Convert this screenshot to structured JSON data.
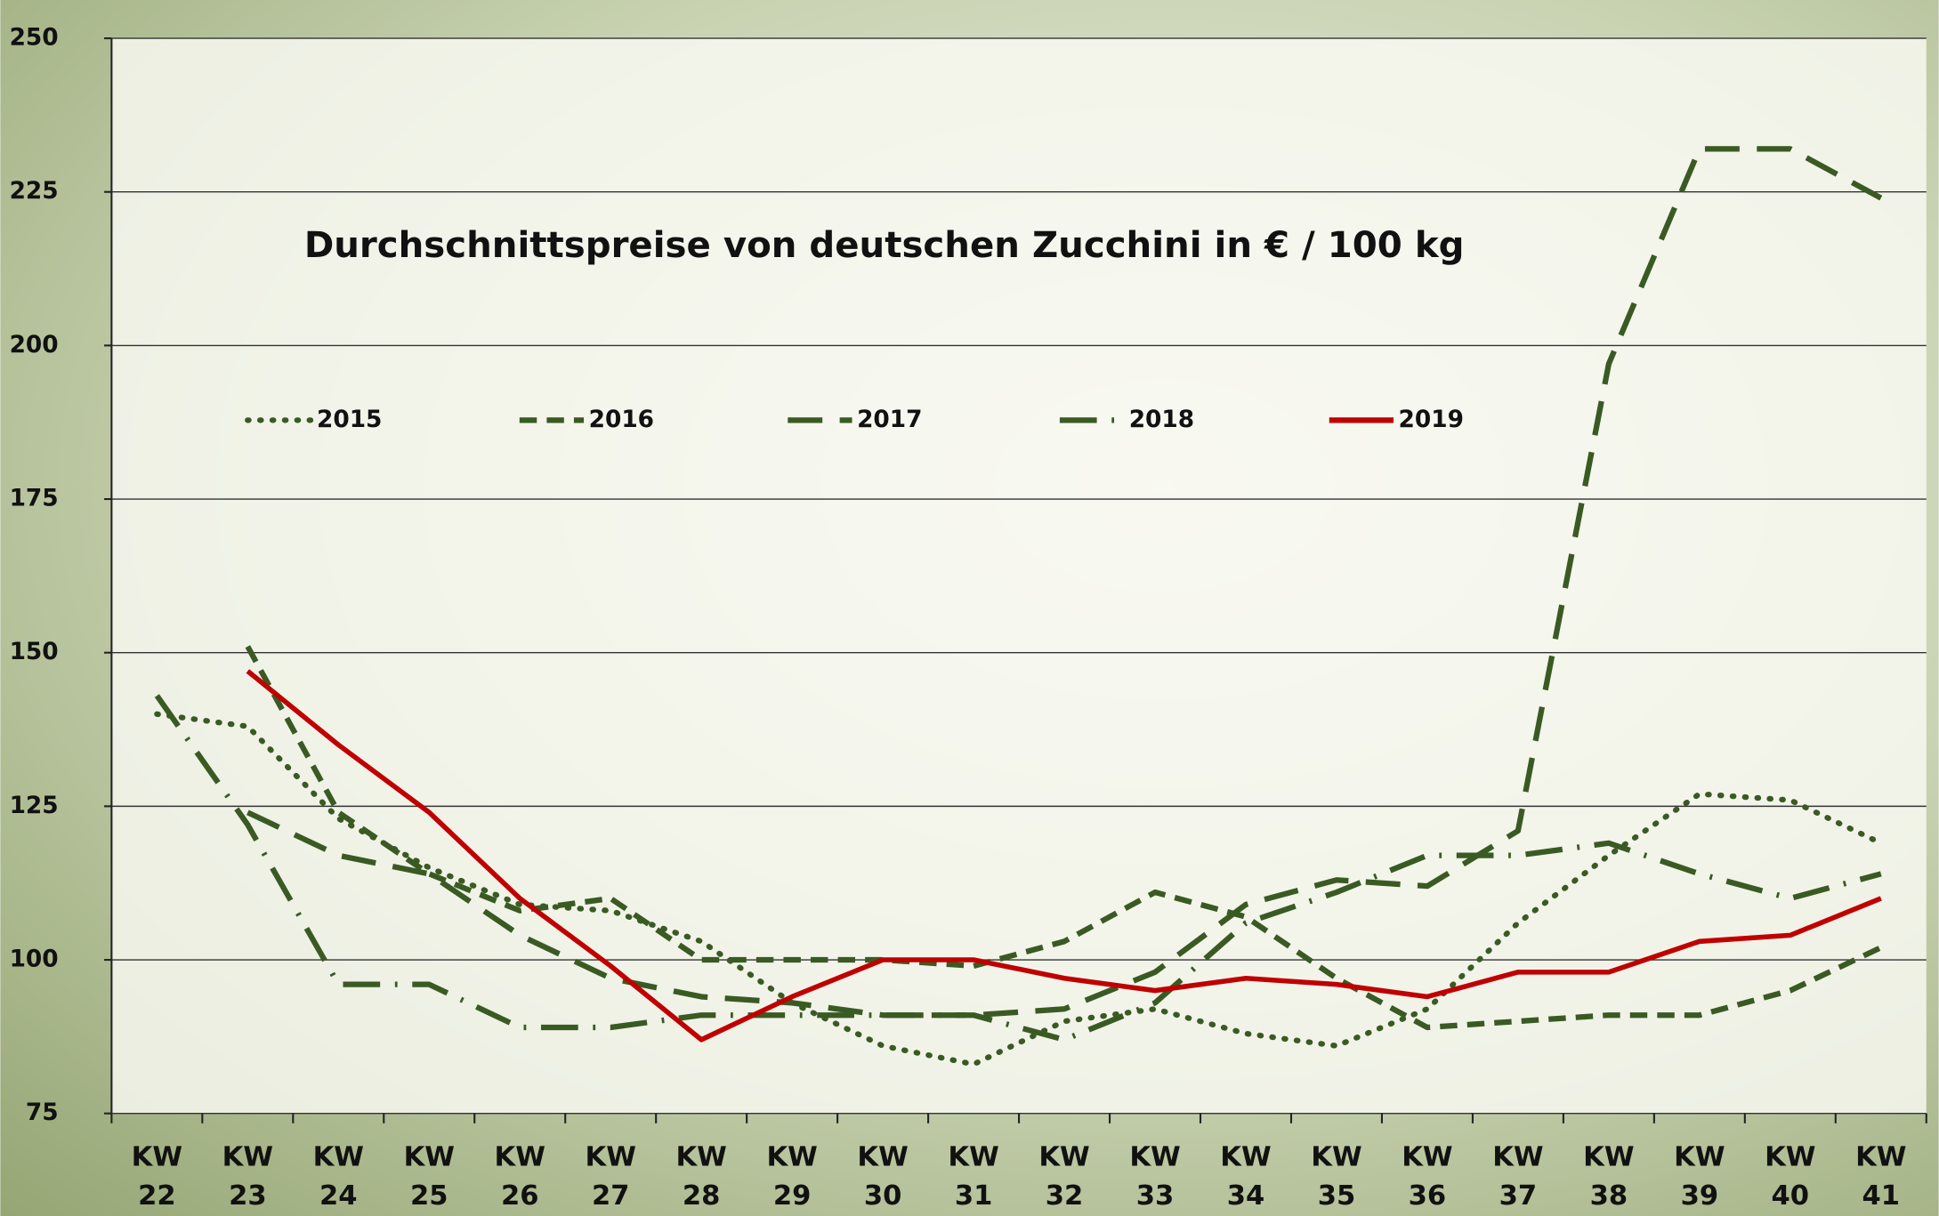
{
  "chart_data": {
    "type": "line",
    "title": "Durchschnittspreise von deutschen Zucchini in € / 100 kg",
    "categories": [
      "KW 22",
      "KW 23",
      "KW 24",
      "KW 25",
      "KW 26",
      "KW 27",
      "KW 28",
      "KW 29",
      "KW 30",
      "KW 31",
      "KW 32",
      "KW 33",
      "KW 34",
      "KW 35",
      "KW 36",
      "KW 37",
      "KW 38",
      "KW 39",
      "KW 40",
      "KW 41"
    ],
    "ylim": [
      75,
      250
    ],
    "yticks": [
      75,
      100,
      125,
      150,
      175,
      200,
      225,
      250
    ],
    "grid": true,
    "legend": "top",
    "series": [
      {
        "name": "2015",
        "color": "#3a5a23",
        "dash": "1,9",
        "values": [
          140,
          138,
          123,
          115,
          109,
          108,
          103,
          93,
          86,
          83,
          90,
          92,
          88,
          86,
          92,
          106,
          117,
          127,
          126,
          119
        ]
      },
      {
        "name": "2016",
        "color": "#3a5a23",
        "dash": "14,8",
        "values": [
          null,
          151,
          124,
          114,
          108,
          110,
          100,
          100,
          100,
          99,
          103,
          111,
          107,
          97,
          89,
          90,
          91,
          91,
          95,
          102
        ]
      },
      {
        "name": "2017",
        "color": "#3a5a23",
        "dash": "28,14",
        "values": [
          null,
          124,
          117,
          114,
          104,
          97,
          94,
          93,
          91,
          91,
          92,
          98,
          109,
          113,
          112,
          121,
          197,
          232,
          232,
          224
        ]
      },
      {
        "name": "2018",
        "color": "#3a5a23",
        "dash": "30,12,2,12",
        "values": [
          143,
          122,
          96,
          96,
          89,
          89,
          91,
          91,
          91,
          91,
          87,
          93,
          106,
          111,
          117,
          117,
          119,
          114,
          110,
          114
        ]
      },
      {
        "name": "2019",
        "color": "#c00000",
        "dash": "",
        "values": [
          null,
          147,
          135,
          124,
          110,
          99,
          87,
          94,
          100,
          100,
          97,
          95,
          97,
          96,
          94,
          98,
          98,
          103,
          104,
          110
        ]
      }
    ]
  }
}
